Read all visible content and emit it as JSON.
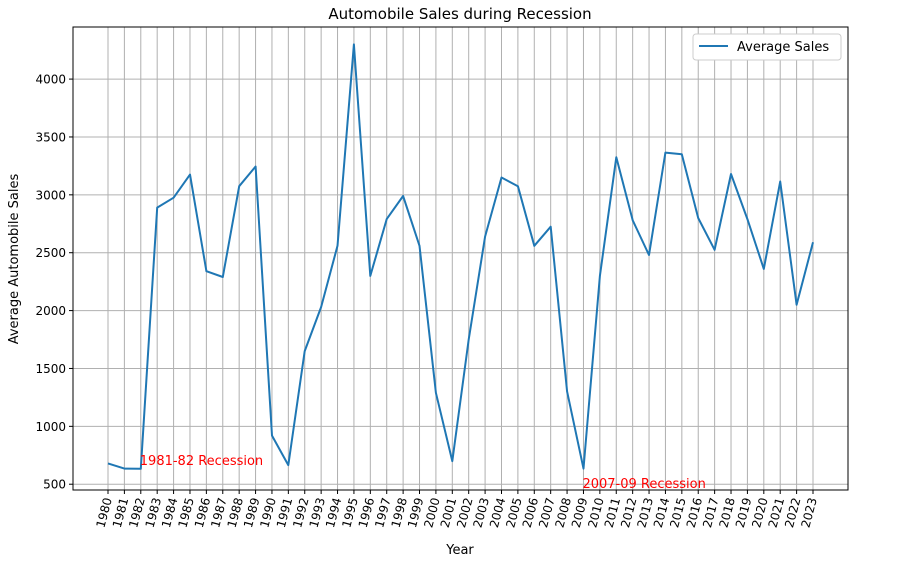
{
  "chart_data": {
    "type": "line",
    "title": "Automobile Sales during Recession",
    "xlabel": "Year",
    "ylabel": "Average Automobile Sales",
    "grid": true,
    "legend_position": "top-right",
    "ylim": [
      450,
      4450
    ],
    "yticks": [
      500,
      1000,
      1500,
      2000,
      2500,
      3000,
      3500,
      4000
    ],
    "x": [
      "1980",
      "1981",
      "1982",
      "1983",
      "1984",
      "1985",
      "1986",
      "1987",
      "1988",
      "1989",
      "1990",
      "1991",
      "1992",
      "1993",
      "1994",
      "1995",
      "1996",
      "1997",
      "1998",
      "1999",
      "2000",
      "2001",
      "2002",
      "2003",
      "2004",
      "2005",
      "2006",
      "2007",
      "2008",
      "2009",
      "2010",
      "2011",
      "2012",
      "2013",
      "2014",
      "2015",
      "2016",
      "2017",
      "2018",
      "2019",
      "2020",
      "2021",
      "2022",
      "2023"
    ],
    "series": [
      {
        "name": "Average Sales",
        "color": "#1f77b4",
        "values": [
          680,
          635,
          633,
          2890,
          2975,
          3175,
          2340,
          2290,
          3075,
          3245,
          920,
          665,
          1650,
          2030,
          2560,
          4300,
          2300,
          2790,
          2990,
          2560,
          1290,
          700,
          1750,
          2640,
          3150,
          3075,
          2560,
          2725,
          1300,
          635,
          2300,
          3325,
          2780,
          2480,
          3365,
          3350,
          2800,
          2525,
          3180,
          2790,
          2360,
          3115,
          2050,
          2590
        ]
      }
    ],
    "annotations": [
      {
        "text": "1981-82 Recession",
        "x": "1982",
        "y": 650,
        "color": "#ff0000"
      },
      {
        "text": "2007-09 Recession",
        "x": "2009",
        "y": 450,
        "color": "#ff0000"
      }
    ]
  }
}
